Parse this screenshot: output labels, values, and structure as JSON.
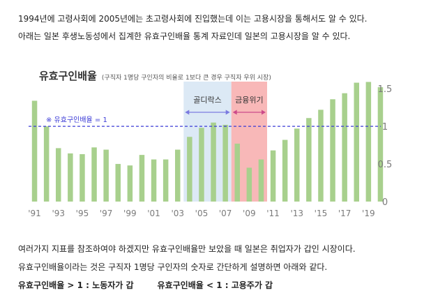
{
  "text": {
    "intro_line1": "1994년에 고령사회에 2005년에는 초고령사회에 진입했는데 이는 고용시장을 통해서도 알 수 있다.",
    "intro_line2": "아래는 일본 후생노동성에서 집계한 유효구인배율 통계 자료인데 일본의 고용시장을 알 수 있다.",
    "outro_line1": "여러가지 지표를 참조하여야 하겠지만 유효구인배율만 보았을 때 일본은 취업자가 갑인 시장이다.",
    "outro_line2": "유효구인배율이라는 것은 구직자 1명당 구인자의 숫자로 간단하게 설명하면 아래와 같다.",
    "rule_gt": "유효구인배율 > 1 : 노동자가 갑",
    "rule_lt": "유효구인배율 < 1 : 고용주가 갑"
  },
  "colors": {
    "bar": "#a8d08d",
    "reference_line": "#3a3ad6",
    "goldilocks_band": "#dce9f5",
    "goldilocks_arrow": "#7b7be0",
    "crisis_band": "#f8b8b8",
    "crisis_arrow": "#cc4a8a",
    "axis_text": "#7a7a7a"
  },
  "chart_data": {
    "type": "bar",
    "title": "유효구인배율",
    "subtitle": "(구직자 1명당 구인자의 비율로 1보다 큰 경우 구직자 우위 시장)",
    "x": [
      1991,
      1992,
      1993,
      1994,
      1995,
      1996,
      1997,
      1998,
      1999,
      2000,
      2001,
      2002,
      2003,
      2004,
      2005,
      2006,
      2007,
      2008,
      2009,
      2010,
      2011,
      2012,
      2013,
      2014,
      2015,
      2016,
      2017,
      2018,
      2019,
      2020
    ],
    "values": [
      1.34,
      1.0,
      0.71,
      0.64,
      0.63,
      0.72,
      0.69,
      0.5,
      0.48,
      0.62,
      0.56,
      0.56,
      0.69,
      0.86,
      0.98,
      1.05,
      1.02,
      0.77,
      0.45,
      0.56,
      0.68,
      0.82,
      0.97,
      1.11,
      1.22,
      1.36,
      1.44,
      1.58,
      1.59,
      1.52
    ],
    "x_tick_labels": [
      "'91",
      "'93",
      "'95",
      "'97",
      "'99",
      "'01",
      "'03",
      "'05",
      "'07",
      "'09",
      "'11",
      "'13",
      "'15",
      "'17",
      "'19"
    ],
    "x_tick_years": [
      1991,
      1993,
      1995,
      1997,
      1999,
      2001,
      2003,
      2005,
      2007,
      2009,
      2011,
      2013,
      2015,
      2017,
      2019
    ],
    "y_ticks": [
      0,
      0.5,
      1,
      1.5
    ],
    "y_tick_labels": [
      "0",
      "0.5",
      "1",
      "1.5"
    ],
    "ylim": [
      0,
      1.65
    ],
    "y_axis_side": "right",
    "reference_line": {
      "value": 1,
      "label": "※ 유효구인배율 = 1"
    },
    "annotations": [
      {
        "label": "골디락스",
        "from_year": 2003.5,
        "to_year": 2007.5
      },
      {
        "label": "금융위기",
        "from_year": 2007.5,
        "to_year": 2010.5
      }
    ]
  }
}
